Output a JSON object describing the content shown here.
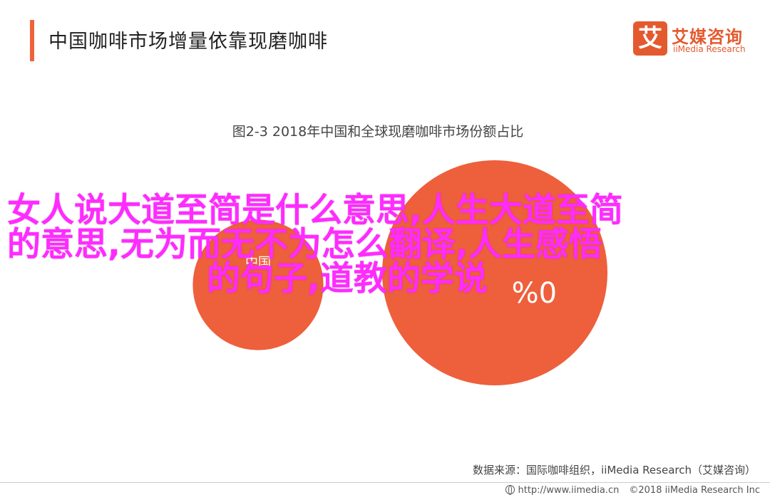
{
  "header": {
    "title": "中国咖啡市场增量依靠现磨咖啡",
    "logo_mark": "艾",
    "logo_cn": "艾媒咨询",
    "logo_en": "iiMedia Research"
  },
  "chart_data": {
    "type": "bubble",
    "title": "图2-3 2018年中国和全球现磨咖啡市场份额占比",
    "items": [
      {
        "name": "中国",
        "value_text": "",
        "relative_size": 0.58
      },
      {
        "name": "",
        "value_text": "%0",
        "relative_size": 1.0
      }
    ],
    "colors": {
      "bubble": "#ee5f3c"
    }
  },
  "overlay": {
    "line1": "女人说大道至简是什么意思,人生大道至简",
    "line2": "的意思,无为而无不为怎么翻译,人生感悟",
    "line3": "的句子,道教的学说"
  },
  "source": "数据来源：国际咖啡组织，iiMedia Research（艾媒咨询）",
  "footer": {
    "url": "http://www.iimedia.cn",
    "copyright": "©2018  iiMedia Research  Inc"
  }
}
